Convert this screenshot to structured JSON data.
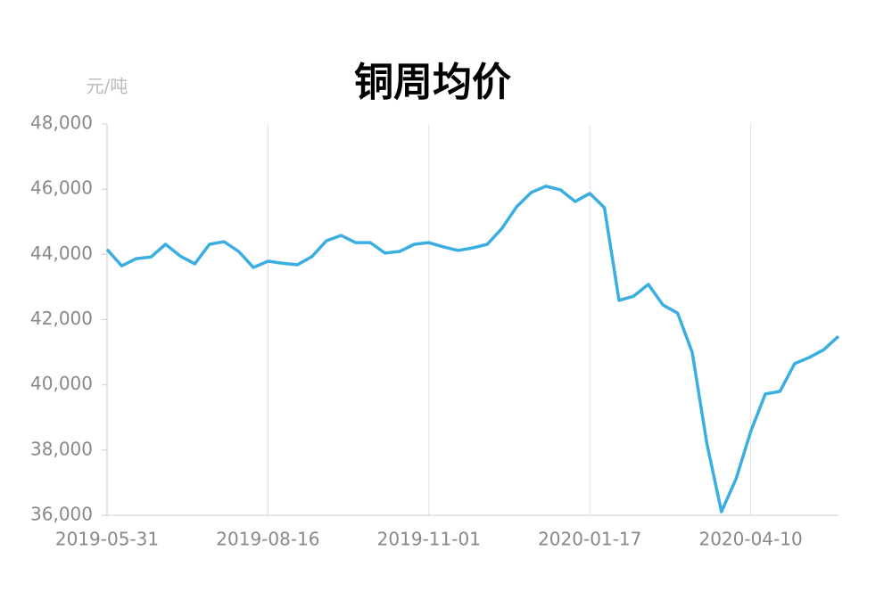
{
  "chart_data": {
    "type": "line",
    "title": "铜周均价",
    "y_label": "元/吨",
    "categories": [
      "2019-05-31",
      null,
      null,
      null,
      null,
      null,
      null,
      null,
      null,
      null,
      null,
      "2019-08-16",
      null,
      null,
      null,
      null,
      null,
      null,
      null,
      null,
      null,
      null,
      "2019-11-01",
      null,
      null,
      null,
      null,
      null,
      null,
      null,
      null,
      null,
      null,
      "2020-01-17",
      null,
      null,
      null,
      null,
      null,
      null,
      null,
      null,
      null,
      null,
      "2020-04-10",
      null,
      null,
      null,
      null,
      null,
      null
    ],
    "series": [
      {
        "name": "铜周均价",
        "color": "#3aaee0",
        "values": [
          44150,
          43650,
          43870,
          43920,
          44310,
          43950,
          43710,
          44310,
          44390,
          44090,
          43600,
          43790,
          43730,
          43680,
          43930,
          44420,
          44580,
          44360,
          44360,
          44040,
          44090,
          44310,
          44360,
          44230,
          44120,
          44200,
          44310,
          44800,
          45460,
          45900,
          46090,
          45980,
          45620,
          45870,
          45430,
          42590,
          42720,
          43080,
          42450,
          42200,
          41000,
          38210,
          36110,
          37120,
          38570,
          39720,
          39800,
          40650,
          40840,
          41080,
          41490
        ]
      }
    ],
    "ylim": [
      36000,
      48000
    ],
    "yticks": [
      {
        "value": 36000,
        "label": "36,000"
      },
      {
        "value": 38000,
        "label": "38,000"
      },
      {
        "value": 40000,
        "label": "40,000"
      },
      {
        "value": 42000,
        "label": "42,000"
      },
      {
        "value": 44000,
        "label": "44,000"
      },
      {
        "value": 46000,
        "label": "46,000"
      },
      {
        "value": 48000,
        "label": "48,000"
      }
    ],
    "grid": "x"
  }
}
